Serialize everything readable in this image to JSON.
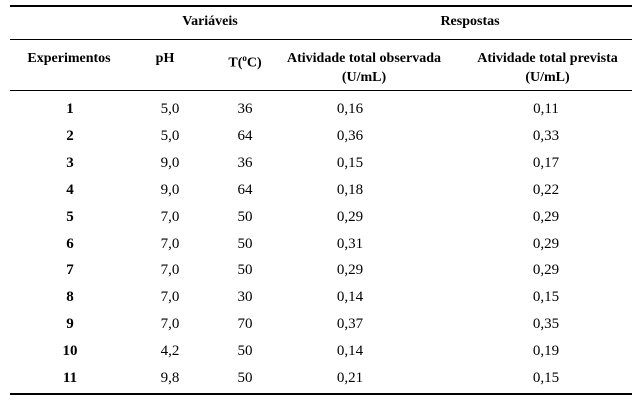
{
  "groups": {
    "variables": "Variáveis",
    "responses": "Respostas"
  },
  "headers": {
    "experiment": "Experimentos",
    "ph": "pH",
    "temp_prefix": "T(",
    "temp_sup": "o",
    "temp_suffix": "C)",
    "observed_line1": "Atividade total observada",
    "observed_line2": "(U/mL)",
    "predicted_line1": "Atividade total prevista",
    "predicted_line2": "(U/mL)"
  },
  "rows": [
    {
      "exp": "1",
      "ph": "5,0",
      "t": "36",
      "obs": "0,16",
      "pred": "0,11"
    },
    {
      "exp": "2",
      "ph": "5,0",
      "t": "64",
      "obs": "0,36",
      "pred": "0,33"
    },
    {
      "exp": "3",
      "ph": "9,0",
      "t": "36",
      "obs": "0,15",
      "pred": "0,17"
    },
    {
      "exp": "4",
      "ph": "9,0",
      "t": "64",
      "obs": "0,18",
      "pred": "0,22"
    },
    {
      "exp": "5",
      "ph": "7,0",
      "t": "50",
      "obs": "0,29",
      "pred": "0,29"
    },
    {
      "exp": "6",
      "ph": "7,0",
      "t": "50",
      "obs": "0,31",
      "pred": "0,29"
    },
    {
      "exp": "7",
      "ph": "7,0",
      "t": "50",
      "obs": "0,29",
      "pred": "0,29"
    },
    {
      "exp": "8",
      "ph": "7,0",
      "t": "30",
      "obs": "0,14",
      "pred": "0,15"
    },
    {
      "exp": "9",
      "ph": "7,0",
      "t": "70",
      "obs": "0,37",
      "pred": "0,35"
    },
    {
      "exp": "10",
      "ph": "4,2",
      "t": "50",
      "obs": "0,14",
      "pred": "0,19"
    },
    {
      "exp": "11",
      "ph": "9,8",
      "t": "50",
      "obs": "0,21",
      "pred": "0,15"
    }
  ]
}
